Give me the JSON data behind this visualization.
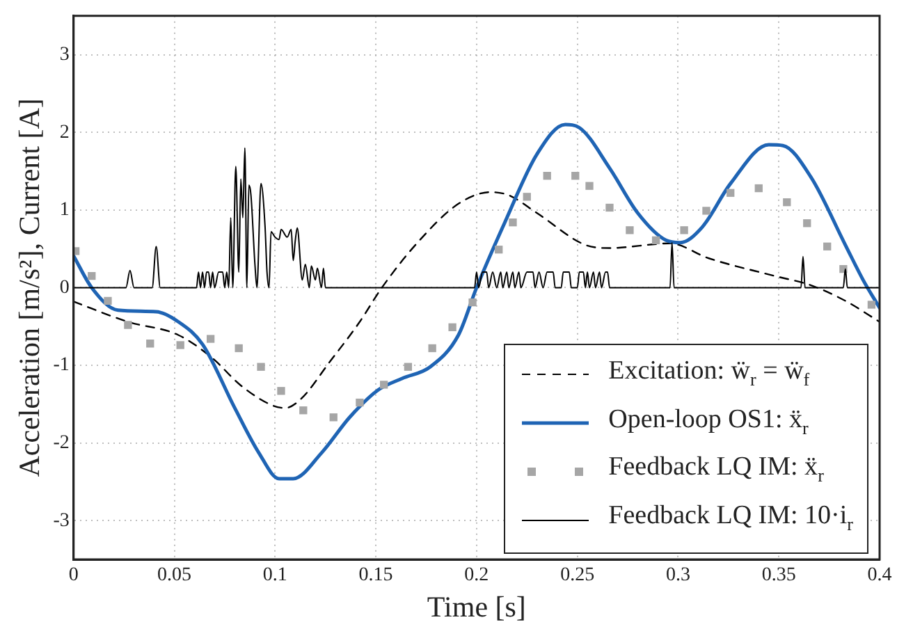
{
  "chart_data": {
    "type": "line",
    "xlabel": "Time [s]",
    "ylabel": "Acceleration [m/s²], Current [A]",
    "xlim": [
      0,
      0.4
    ],
    "xticks": [
      0,
      0.05,
      0.1,
      0.15,
      0.2,
      0.25,
      0.3,
      0.35,
      0.4
    ],
    "ylim": [
      -3.5,
      3.5
    ],
    "yticks": [
      -3,
      -2,
      -1,
      0,
      1,
      2,
      3
    ],
    "grid": true,
    "legend": "bottom right",
    "series": [
      {
        "name": "Excitation: ẅ$_{r}$ = ẅ$_{f}$",
        "color": "#000000",
        "line_style": "dashed",
        "marker": "none",
        "x": [
          0,
          0.027,
          0.052,
          0.069,
          0.083,
          0.099,
          0.105,
          0.113,
          0.127,
          0.142,
          0.153,
          0.17,
          0.191,
          0.207,
          0.216,
          0.23,
          0.254,
          0.266,
          0.296,
          0.315,
          0.348,
          0.366,
          0.383,
          0.4
        ],
        "values": [
          -0.18,
          -0.44,
          -0.61,
          -0.91,
          -1.26,
          -1.52,
          -1.55,
          -1.43,
          -0.96,
          -0.44,
          0,
          0.56,
          1.08,
          1.23,
          1.19,
          0.96,
          0.55,
          0.51,
          0.57,
          0.38,
          0.15,
          0.03,
          -0.17,
          -0.44
        ]
      },
      {
        "name": "Open-loop OS1: ẍ$_{r}$",
        "color": "#1f64b4",
        "line_style": "solid",
        "marker": "none",
        "x": [
          0,
          0.009,
          0.022,
          0.041,
          0.052,
          0.064,
          0.08,
          0.092,
          0.102,
          0.109,
          0.123,
          0.137,
          0.151,
          0.163,
          0.177,
          0.191,
          0.2,
          0.214,
          0.23,
          0.244,
          0.251,
          0.266,
          0.28,
          0.294,
          0.301,
          0.312,
          0.326,
          0.345,
          0.352,
          0.366,
          0.383,
          0.392,
          0.4
        ],
        "values": [
          0.41,
          0,
          -0.29,
          -0.31,
          -0.44,
          -0.73,
          -1.55,
          -2.13,
          -2.46,
          -2.46,
          -2.13,
          -1.67,
          -1.32,
          -1.17,
          -1.02,
          -0.61,
          0,
          0.84,
          1.72,
          2.1,
          2.06,
          1.54,
          0.96,
          0.61,
          0.58,
          0.78,
          1.34,
          1.84,
          1.83,
          1.42,
          0.55,
          0.09,
          -0.26
        ]
      },
      {
        "name": "Feedback LQ IM: ẍ$_{r}$",
        "type": "scatter",
        "color": "#a6a6a6",
        "marker": "square",
        "x": [
          0.001,
          0.009,
          0.017,
          0.027,
          0.038,
          0.053,
          0.068,
          0.082,
          0.093,
          0.103,
          0.114,
          0.129,
          0.142,
          0.154,
          0.166,
          0.178,
          0.188,
          0.198,
          0.211,
          0.218,
          0.225,
          0.235,
          0.249,
          0.256,
          0.266,
          0.276,
          0.289,
          0.303,
          0.314,
          0.326,
          0.34,
          0.354,
          0.364,
          0.374,
          0.382,
          0.396
        ],
        "values": [
          0.47,
          0.15,
          -0.17,
          -0.48,
          -0.72,
          -0.74,
          -0.66,
          -0.78,
          -1.02,
          -1.33,
          -1.58,
          -1.67,
          -1.48,
          -1.25,
          -1.02,
          -0.78,
          -0.51,
          -0.19,
          0.49,
          0.84,
          1.17,
          1.44,
          1.44,
          1.31,
          1.03,
          0.74,
          0.61,
          0.74,
          0.99,
          1.22,
          1.28,
          1.1,
          0.83,
          0.53,
          0.24,
          -0.22
        ]
      },
      {
        "name": "Feedback LQ IM: 10·i$_{r}$",
        "color": "#000000",
        "line_style": "solid",
        "marker": "none",
        "x": [
          0,
          0.026,
          0.028,
          0.03,
          0.039,
          0.041,
          0.043,
          0.061,
          0.062,
          0.063,
          0.064,
          0.065,
          0.066,
          0.067,
          0.068,
          0.069,
          0.07,
          0.072,
          0.074,
          0.075,
          0.076,
          0.077,
          0.078,
          0.079,
          0.0805,
          0.082,
          0.083,
          0.084,
          0.085,
          0.086,
          0.087,
          0.088,
          0.09,
          0.091,
          0.093,
          0.095,
          0.096,
          0.097,
          0.098,
          0.1,
          0.102,
          0.103,
          0.106,
          0.108,
          0.109,
          0.11,
          0.111,
          0.1135,
          0.115,
          0.117,
          0.118,
          0.12,
          0.121,
          0.123,
          0.124,
          0.125,
          0.199,
          0.2,
          0.201,
          0.203,
          0.205,
          0.206,
          0.208,
          0.21,
          0.212,
          0.213,
          0.215,
          0.216,
          0.218,
          0.219,
          0.221,
          0.222,
          0.225,
          0.228,
          0.229,
          0.231,
          0.233,
          0.235,
          0.238,
          0.239,
          0.242,
          0.243,
          0.246,
          0.247,
          0.25,
          0.251,
          0.253,
          0.254,
          0.255,
          0.256,
          0.258,
          0.259,
          0.261,
          0.262,
          0.264,
          0.265,
          0.266,
          0.296,
          0.297,
          0.298,
          0.361,
          0.362,
          0.363,
          0.382,
          0.383,
          0.384,
          0.4
        ],
        "values": [
          0,
          0,
          0.22,
          0,
          0,
          0.53,
          0,
          0,
          0.2,
          0,
          0.2,
          0,
          0.2,
          0.2,
          0,
          0.2,
          0,
          0.2,
          0.2,
          0,
          0.2,
          0,
          0.9,
          0,
          1.56,
          0.2,
          1.4,
          0.9,
          1.8,
          0,
          1.32,
          1.2,
          0.3,
          0,
          1.34,
          0.8,
          0.2,
          0,
          0.72,
          0.65,
          0.62,
          0.75,
          0.65,
          0.75,
          0.35,
          0.6,
          0.77,
          0.1,
          0.3,
          0,
          0.28,
          0.1,
          0.25,
          0,
          0.25,
          0,
          0,
          0.2,
          0,
          0.2,
          0.2,
          0,
          0.2,
          0,
          0.2,
          0,
          0.2,
          0,
          0.2,
          0,
          0.2,
          0,
          0.2,
          0.2,
          0,
          0.2,
          0,
          0.2,
          0.2,
          0,
          0,
          0.2,
          0.2,
          0,
          0,
          0.2,
          0.2,
          0,
          0.2,
          0,
          0.2,
          0,
          0.2,
          0,
          0.2,
          0.2,
          0,
          0,
          0.58,
          0,
          0,
          0.4,
          0,
          0,
          0.24,
          0,
          0
        ]
      }
    ]
  }
}
